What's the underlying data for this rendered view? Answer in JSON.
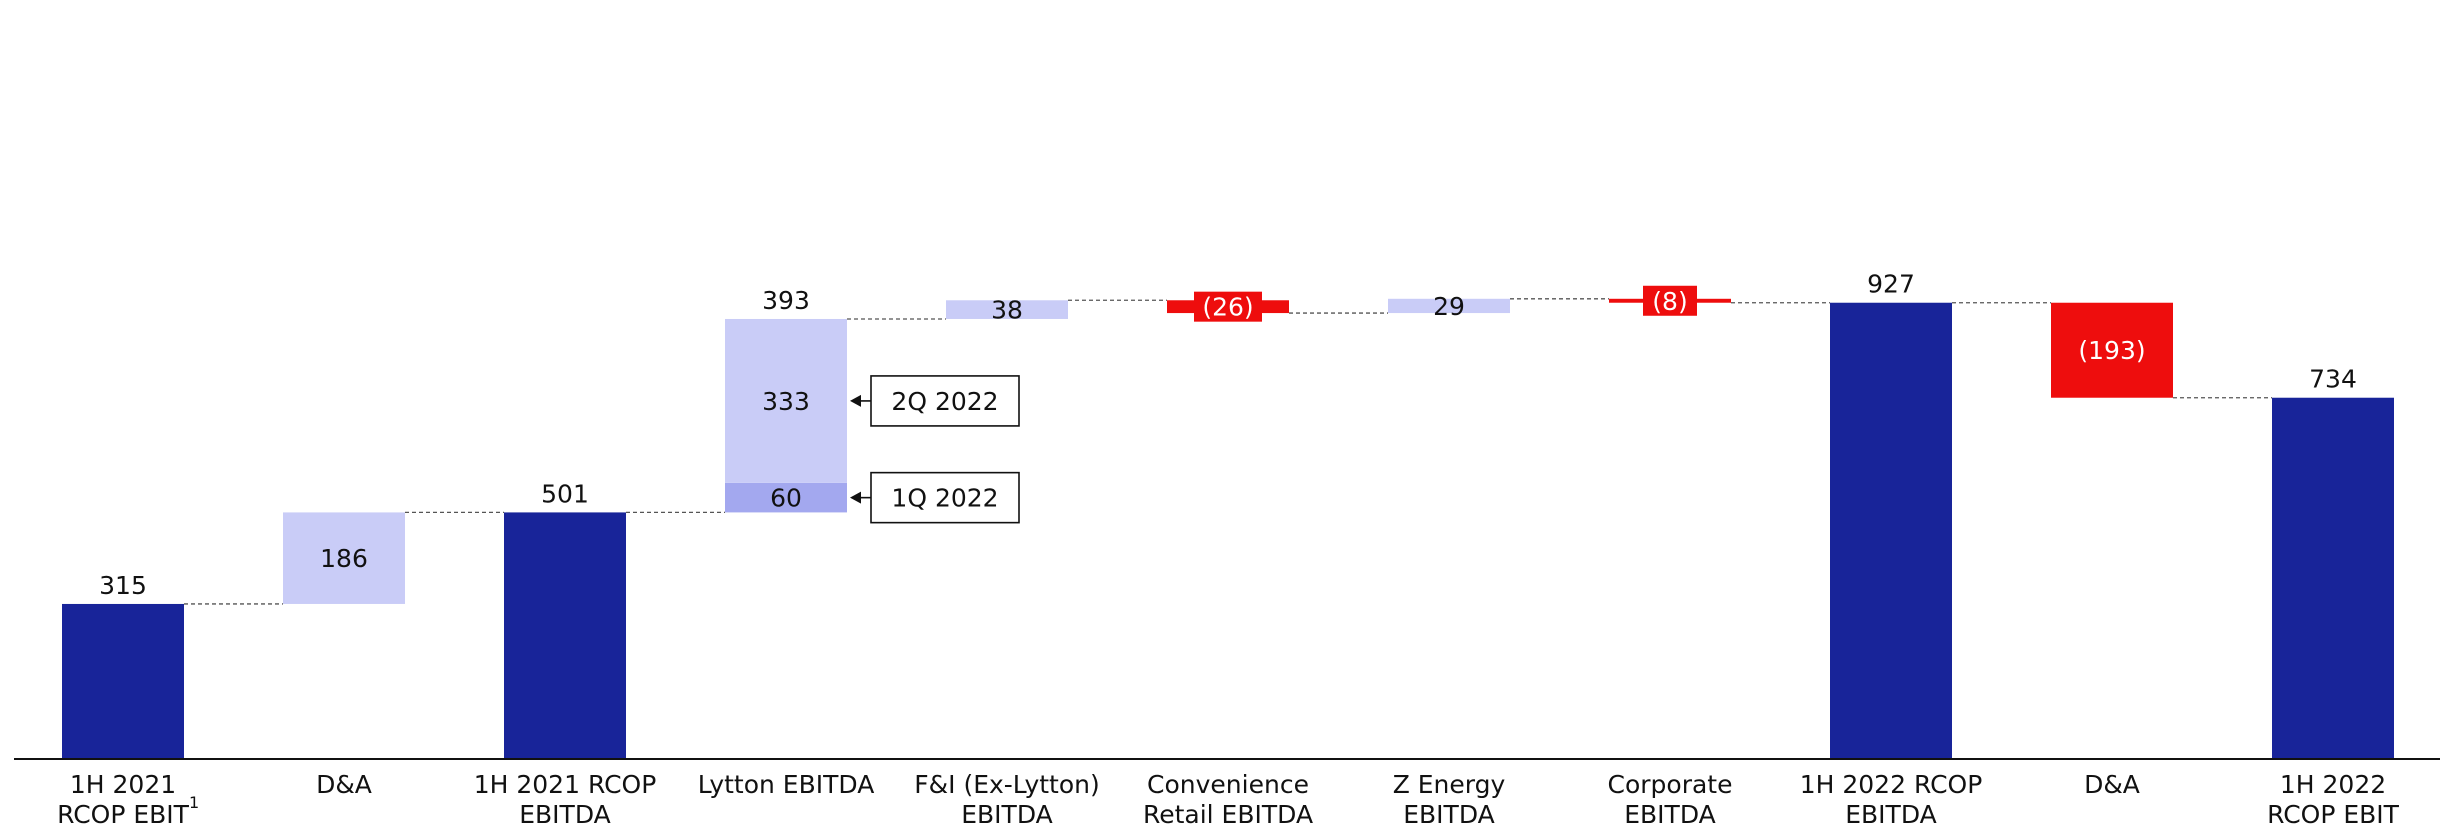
{
  "colors": {
    "total": "#182499",
    "increase": "#c9ccf7",
    "increase_q1": "#a3a8ef",
    "decrease": "#ee0d0d",
    "connector": "#555555",
    "axis": "#111111"
  },
  "chart_data": {
    "type": "waterfall",
    "title": "",
    "xlabel": "",
    "ylabel": "",
    "ylim": [
      0,
      960
    ],
    "grid": false,
    "legend": "none",
    "categories": [
      [
        "1H 2021",
        "RCOP EBIT"
      ],
      [
        "D&A"
      ],
      [
        "1H 2021 RCOP",
        "EBITDA"
      ],
      [
        "Lytton EBITDA"
      ],
      [
        "F&I (Ex-Lytton)",
        "EBITDA"
      ],
      [
        "Convenience",
        "Retail EBITDA"
      ],
      [
        "Z Energy",
        "EBITDA"
      ],
      [
        "Corporate",
        "EBITDA"
      ],
      [
        "1H 2022 RCOP",
        "EBITDA"
      ],
      [
        "D&A"
      ],
      [
        "1H 2022",
        "RCOP EBIT"
      ]
    ],
    "footnote_marker": "1",
    "bars": [
      {
        "kind": "total",
        "value": 315,
        "label": "315"
      },
      {
        "kind": "increase",
        "value": 186,
        "label": "186"
      },
      {
        "kind": "total",
        "value": 501,
        "label": "501"
      },
      {
        "kind": "increase",
        "value": 393,
        "label": "393",
        "segments": [
          {
            "name": "1Q 2022",
            "value": 60,
            "label": "60"
          },
          {
            "name": "2Q 2022",
            "value": 333,
            "label": "333"
          }
        ]
      },
      {
        "kind": "increase",
        "value": 38,
        "label": "38"
      },
      {
        "kind": "decrease",
        "value": -26,
        "label": "(26)"
      },
      {
        "kind": "increase",
        "value": 29,
        "label": "29"
      },
      {
        "kind": "decrease",
        "value": -8,
        "label": "(8)"
      },
      {
        "kind": "total",
        "value": 927,
        "label": "927"
      },
      {
        "kind": "decrease",
        "value": -193,
        "label": "(193)"
      },
      {
        "kind": "total",
        "value": 734,
        "label": "734"
      }
    ],
    "annotations": [
      "2Q 2022",
      "1Q 2022"
    ]
  }
}
